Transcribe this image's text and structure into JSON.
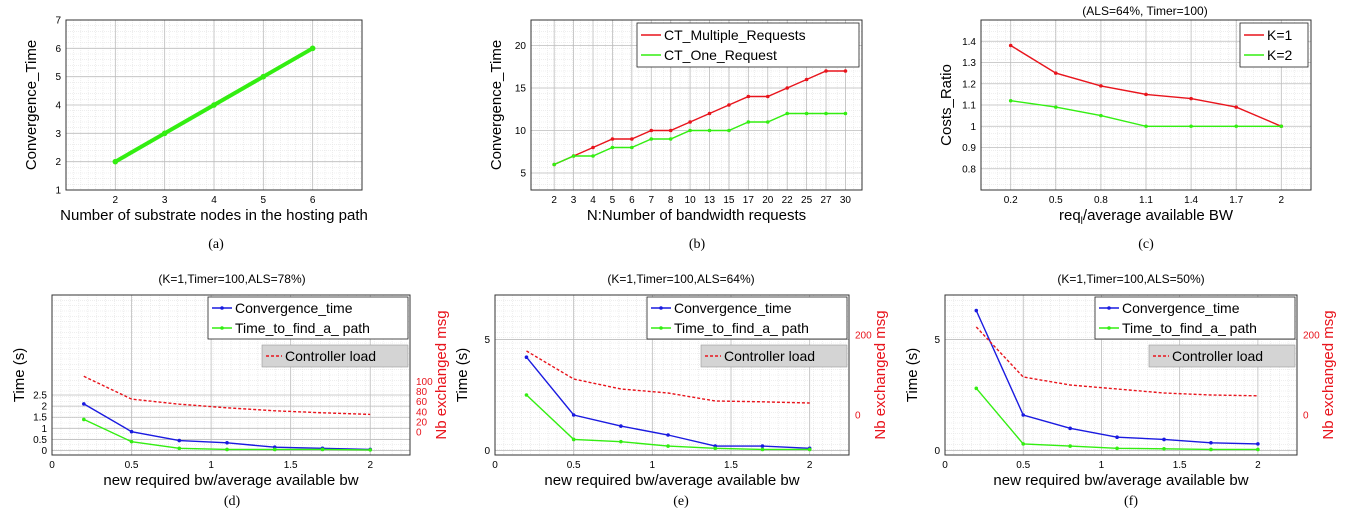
{
  "chart_data": [
    {
      "id": "a",
      "type": "line",
      "caption": "(a)",
      "title": "",
      "xlabel": "Number of substrate nodes in the hosting path",
      "ylabel": "Convergence_Time",
      "xlim": [
        1,
        7
      ],
      "ylim": [
        1,
        7
      ],
      "xticks": [
        2,
        3,
        4,
        5,
        6
      ],
      "yticks": [
        1,
        2,
        3,
        4,
        5,
        6,
        7
      ],
      "grid": true,
      "legend": "none",
      "series": [
        {
          "name": "",
          "color": "#33ee11",
          "x": [
            2,
            3,
            4,
            5,
            6
          ],
          "values": [
            2,
            3,
            4,
            5,
            6
          ]
        }
      ]
    },
    {
      "id": "b",
      "type": "line",
      "caption": "(b)",
      "title": "",
      "xlabel": "N:Number of bandwidth requests",
      "ylabel": "Convergence_Time",
      "categories": [
        "2",
        "3",
        "4",
        "5",
        "6",
        "7",
        "8",
        "10",
        "13",
        "15",
        "17",
        "20",
        "22",
        "25",
        "27",
        "30"
      ],
      "ylim": [
        3,
        23
      ],
      "yticks": [
        5,
        10,
        15,
        20
      ],
      "grid": true,
      "legend": "top-right",
      "series": [
        {
          "name": "CT_Multiple_Requests",
          "color": "#e8141c",
          "values": [
            6,
            7,
            8,
            9,
            9,
            10,
            10,
            11,
            12,
            13,
            14,
            14,
            15,
            16,
            17,
            17
          ]
        },
        {
          "name": "CT_One_Request",
          "color": "#33ee11",
          "values": [
            6,
            7,
            7,
            8,
            8,
            9,
            9,
            10,
            10,
            10,
            11,
            11,
            12,
            12,
            12,
            12
          ]
        }
      ]
    },
    {
      "id": "c",
      "type": "line",
      "caption": "(c)",
      "title": "(ALS=64%, Timer=100)",
      "xlabel": "req",
      "xlabel_sub": "l",
      "xlabel_rest": "/average available BW",
      "ylabel": "Costs_Ratio",
      "categories": [
        "0.2",
        "0.5",
        "0.8",
        "1.1",
        "1.4",
        "1.7",
        "2"
      ],
      "ylim": [
        0.7,
        1.5
      ],
      "yticks": [
        0.8,
        0.9,
        1,
        1.1,
        1.2,
        1.3,
        1.4
      ],
      "ytick_labels": [
        "0.8",
        "0.9",
        "1",
        "1.1",
        "1.2",
        "1.3",
        "1.4"
      ],
      "grid": true,
      "legend": "top-right",
      "series": [
        {
          "name": "K=1",
          "color": "#e8141c",
          "values": [
            1.38,
            1.25,
            1.19,
            1.15,
            1.13,
            1.09,
            1.0
          ]
        },
        {
          "name": "K=2",
          "color": "#33ee11",
          "values": [
            1.12,
            1.09,
            1.05,
            1.0,
            1.0,
            1.0,
            1.0
          ]
        }
      ]
    },
    {
      "id": "d",
      "type": "line",
      "caption": "(d)",
      "title": "(K=1,Timer=100,ALS=78%)",
      "xlabel": "new required bw/average available bw",
      "ylabel": "Time (s)",
      "ylabel_right": "Nb exchanged msg",
      "xlim": [
        0,
        2.25
      ],
      "xticks": [
        0,
        0.5,
        1,
        1.5,
        2
      ],
      "xtick_labels": [
        "0",
        "0.5",
        "1",
        "1.5",
        "2"
      ],
      "ylim": [
        -0.2,
        7
      ],
      "yticks": [
        0,
        0.5,
        1,
        1.5,
        2,
        2.5
      ],
      "ytick_labels": [
        "0",
        "0.5",
        "1",
        "1.5",
        "2",
        "2.5"
      ],
      "ylim_right": [
        -45,
        270
      ],
      "yticks_right": [
        0,
        20,
        40,
        60,
        80,
        100
      ],
      "grid": true,
      "legend": "top-right",
      "series": [
        {
          "name": "Convergence_time",
          "axis": "left",
          "color": "#1a1ae0",
          "x": [
            0.2,
            0.5,
            0.8,
            1.1,
            1.4,
            1.7,
            2
          ],
          "values": [
            2.1,
            0.85,
            0.45,
            0.35,
            0.15,
            0.1,
            0.05
          ]
        },
        {
          "name": "Time_to_find_a_ path",
          "axis": "left",
          "color": "#33ee11",
          "x": [
            0.2,
            0.5,
            0.8,
            1.1,
            1.4,
            1.7,
            2
          ],
          "values": [
            1.4,
            0.4,
            0.1,
            0.05,
            0.05,
            0.05,
            0.03
          ]
        },
        {
          "name": "Controller load",
          "axis": "right",
          "dashed": true,
          "color": "#e8141c",
          "x": [
            0.2,
            0.5,
            0.8,
            1.1,
            1.4,
            1.7,
            2
          ],
          "values": [
            110,
            65,
            55,
            48,
            42,
            38,
            35
          ]
        }
      ]
    },
    {
      "id": "e",
      "type": "line",
      "caption": "(e)",
      "title": "(K=1,Timer=100,ALS=64%)",
      "xlabel": "new required bw/average available bw",
      "ylabel": "Time (s)",
      "ylabel_right": "Nb exchanged msg",
      "xlim": [
        0,
        2.25
      ],
      "xticks": [
        0,
        0.5,
        1,
        1.5,
        2
      ],
      "xtick_labels": [
        "0",
        "0.5",
        "1",
        "1.5",
        "2"
      ],
      "ylim": [
        -0.2,
        7
      ],
      "yticks": [
        0,
        5
      ],
      "ytick_labels": [
        "0",
        "5"
      ],
      "ylim_right": [
        -100,
        300
      ],
      "yticks_right": [
        0,
        200
      ],
      "grid": true,
      "legend": "top-right",
      "series": [
        {
          "name": "Convergence_time",
          "axis": "left",
          "color": "#1a1ae0",
          "x": [
            0.2,
            0.5,
            0.8,
            1.1,
            1.4,
            1.7,
            2
          ],
          "values": [
            4.2,
            1.6,
            1.1,
            0.7,
            0.2,
            0.2,
            0.1
          ]
        },
        {
          "name": "Time_to_find_a_ path",
          "axis": "left",
          "color": "#33ee11",
          "x": [
            0.2,
            0.5,
            0.8,
            1.1,
            1.4,
            1.7,
            2
          ],
          "values": [
            2.5,
            0.5,
            0.4,
            0.2,
            0.1,
            0.05,
            0.05
          ]
        },
        {
          "name": "Controller load",
          "axis": "right",
          "dashed": true,
          "color": "#e8141c",
          "x": [
            0.2,
            0.5,
            0.8,
            1.1,
            1.4,
            1.7,
            2
          ],
          "values": [
            160,
            90,
            65,
            55,
            35,
            33,
            30
          ]
        }
      ]
    },
    {
      "id": "f",
      "type": "line",
      "caption": "(f)",
      "title": "(K=1,Timer=100,ALS=50%)",
      "xlabel": "new required bw/average available bw",
      "ylabel": "Time (s)",
      "ylabel_right": "Nb exchanged msg",
      "xlim": [
        0,
        2.25
      ],
      "xticks": [
        0,
        0.5,
        1,
        1.5,
        2
      ],
      "xtick_labels": [
        "0",
        "0.5",
        "1",
        "1.5",
        "2"
      ],
      "ylim": [
        -0.2,
        7
      ],
      "yticks": [
        0,
        5
      ],
      "ytick_labels": [
        "0",
        "5"
      ],
      "ylim_right": [
        -100,
        300
      ],
      "yticks_right": [
        0,
        200
      ],
      "grid": true,
      "legend": "top-right",
      "series": [
        {
          "name": "Convergence_time",
          "axis": "left",
          "color": "#1a1ae0",
          "x": [
            0.2,
            0.5,
            0.8,
            1.1,
            1.4,
            1.7,
            2
          ],
          "values": [
            6.3,
            1.6,
            1.0,
            0.6,
            0.5,
            0.35,
            0.3
          ]
        },
        {
          "name": "Time_to_find_a_ path",
          "axis": "left",
          "color": "#33ee11",
          "x": [
            0.2,
            0.5,
            0.8,
            1.1,
            1.4,
            1.7,
            2
          ],
          "values": [
            2.8,
            0.3,
            0.2,
            0.1,
            0.08,
            0.05,
            0.05
          ]
        },
        {
          "name": "Controller load",
          "axis": "right",
          "dashed": true,
          "color": "#e8141c",
          "x": [
            0.2,
            0.5,
            0.8,
            1.1,
            1.4,
            1.7,
            2
          ],
          "values": [
            220,
            95,
            75,
            65,
            55,
            50,
            48
          ]
        }
      ]
    }
  ]
}
